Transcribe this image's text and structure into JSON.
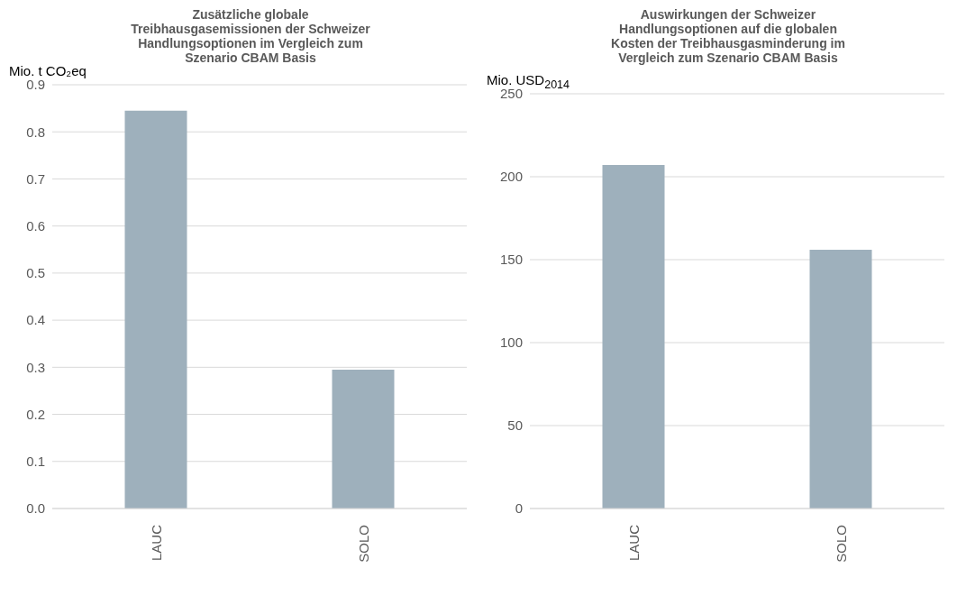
{
  "chart_data": [
    {
      "type": "bar",
      "title": "Zusätzliche globale\nTreibhausgasemissionen der Schweizer\nHandlungsoptionen im Vergleich zum\nSzenario CBAM Basis",
      "ylabel": "Mio. t CO₂eq",
      "categories": [
        "LAUC",
        "SOLO"
      ],
      "values": [
        0.845,
        0.295
      ],
      "color": "#9eb0bc",
      "ylim": [
        0,
        0.9
      ],
      "yticks": [
        {
          "value": 0,
          "label": "0.0"
        },
        0.1,
        0.2,
        0.3,
        0.4,
        0.5,
        0.6,
        0.7,
        0.8,
        0.9
      ],
      "grid": "y"
    },
    {
      "type": "bar",
      "title": "Auswirkungen der Schweizer\nHandlungsoptionen auf die globalen\nKosten der Treibhausgasminderung im\nVergleich zum Szenario CBAM Basis",
      "ylabel": "Mio. USD$_{2014}$",
      "categories": [
        "LAUC",
        "SOLO"
      ],
      "values": [
        207,
        156
      ],
      "color": "#9eb0bc",
      "ylim": [
        0,
        250
      ],
      "yticks": [
        0,
        50,
        100,
        150,
        200,
        250
      ],
      "grid": "y"
    }
  ]
}
